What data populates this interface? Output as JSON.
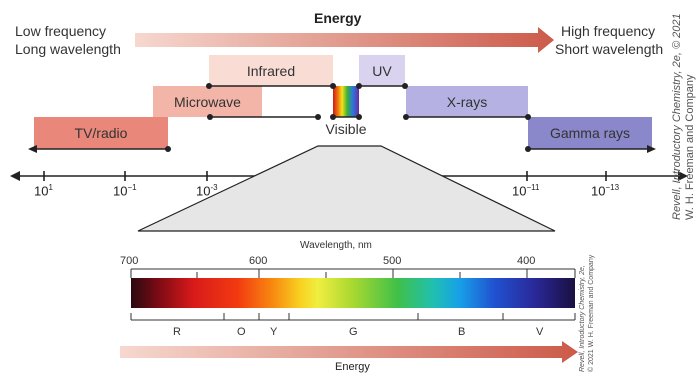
{
  "header": {
    "left_line1": "Low frequency",
    "left_line2": "Long wavelength",
    "energy_label": "Energy",
    "right_line1": "High frequency",
    "right_line2": "Short wavelength"
  },
  "bands": {
    "tv_radio": "TV/radio",
    "microwave": "Microwave",
    "infrared": "Infrared",
    "uv": "UV",
    "visible": "Visible",
    "xrays": "X-rays",
    "gamma": "Gamma rays"
  },
  "colors": {
    "tv_radio": "#e9877a",
    "microwave": "#f2b5a8",
    "infrared": "#f9ddd5",
    "uv": "#d9d3ef",
    "xrays": "#b5b1e2",
    "gamma": "#8b87cb",
    "energy_arrow_start": "#f6d8cf",
    "energy_arrow_end": "#cc5a4a"
  },
  "top_axis": {
    "ticks": [
      {
        "base": "10",
        "exp": "1"
      },
      {
        "base": "10",
        "exp": "−1"
      },
      {
        "base": "10",
        "exp": "-3"
      },
      {
        "base": "10",
        "exp": "−11"
      },
      {
        "base": "10",
        "exp": "−13"
      }
    ]
  },
  "spectrum": {
    "axis_title": "Wavelength, nm",
    "tick_labels": [
      "700",
      "600",
      "500",
      "400"
    ],
    "color_letters": [
      "R",
      "O",
      "Y",
      "G",
      "B",
      "V"
    ],
    "energy_label": "Energy"
  },
  "credits": {
    "main_line1": "Revell, Introductory Chemistry, 2e, © 2021",
    "main_line2": "W. H. Freeman and Company",
    "small_line1": "Revell, Introductory Chemistry, 2e,",
    "small_line2": "© 2021 W. H. Freeman and Company"
  }
}
